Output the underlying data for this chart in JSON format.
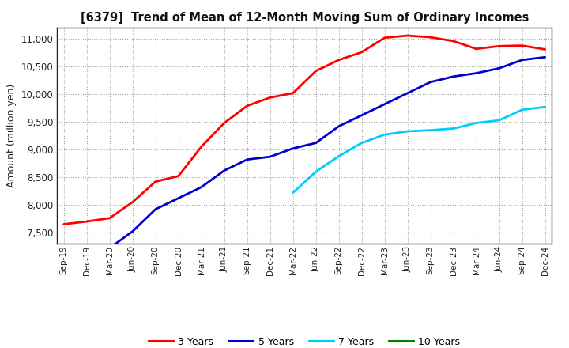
{
  "title": "[6379]  Trend of Mean of 12-Month Moving Sum of Ordinary Incomes",
  "ylabel": "Amount (million yen)",
  "background_color": "#ffffff",
  "plot_bg_color": "#ffffff",
  "grid_color": "#999999",
  "x_labels": [
    "Sep-19",
    "Dec-19",
    "Mar-20",
    "Jun-20",
    "Sep-20",
    "Dec-20",
    "Mar-21",
    "Jun-21",
    "Sep-21",
    "Dec-21",
    "Mar-22",
    "Jun-22",
    "Sep-22",
    "Dec-22",
    "Mar-23",
    "Jun-23",
    "Sep-23",
    "Dec-23",
    "Mar-24",
    "Jun-24",
    "Sep-24",
    "Dec-24"
  ],
  "series": {
    "3 Years": {
      "color": "#ff0000",
      "data_x": [
        0,
        1,
        2,
        3,
        4,
        5,
        6,
        7,
        8,
        9,
        10,
        11,
        12,
        13,
        14,
        15,
        16,
        17,
        18,
        19,
        20,
        21
      ],
      "data_y": [
        7650,
        7700,
        7760,
        8050,
        8420,
        8520,
        9050,
        9480,
        9790,
        9940,
        10020,
        10420,
        10620,
        10760,
        11020,
        11060,
        11030,
        10960,
        10820,
        10870,
        10880,
        10810
      ]
    },
    "5 Years": {
      "color": "#0000cc",
      "data_x": [
        2,
        3,
        4,
        5,
        6,
        7,
        8,
        9,
        10,
        11,
        12,
        13,
        14,
        15,
        16,
        17,
        18,
        19,
        20,
        21
      ],
      "data_y": [
        7220,
        7520,
        7920,
        8120,
        8320,
        8620,
        8820,
        8870,
        9020,
        9120,
        9420,
        9620,
        9820,
        10020,
        10220,
        10320,
        10380,
        10470,
        10620,
        10670
      ]
    },
    "7 Years": {
      "color": "#00ccff",
      "data_x": [
        10,
        11,
        12,
        13,
        14,
        15,
        16,
        17,
        18,
        19,
        20,
        21
      ],
      "data_y": [
        8220,
        8600,
        8880,
        9120,
        9270,
        9330,
        9350,
        9380,
        9480,
        9530,
        9720,
        9770
      ]
    },
    "10 Years": {
      "color": "#008000",
      "data_x": [],
      "data_y": []
    }
  },
  "ylim": [
    7300,
    11200
  ],
  "yticks": [
    7500,
    8000,
    8500,
    9000,
    9500,
    10000,
    10500,
    11000
  ],
  "legend_labels": [
    "3 Years",
    "5 Years",
    "7 Years",
    "10 Years"
  ],
  "legend_colors": [
    "#ff0000",
    "#0000cc",
    "#00ccff",
    "#008000"
  ]
}
